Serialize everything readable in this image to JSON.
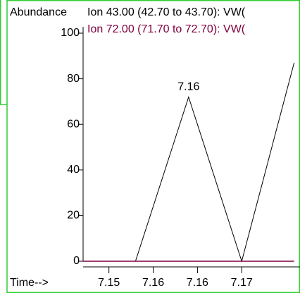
{
  "chart_data": {
    "type": "line",
    "ylabel": "Abundance",
    "xlabel": "Time-->",
    "xlim": [
      7.1485,
      7.1779
    ],
    "ylim": [
      0,
      100
    ],
    "xticks": [
      {
        "value": 7.152,
        "label": "7.15"
      },
      {
        "value": 7.158,
        "label": "7.16"
      },
      {
        "value": 7.164,
        "label": "7.16"
      },
      {
        "value": 7.17,
        "label": "7.17"
      }
    ],
    "yticks": [
      0,
      20,
      40,
      60,
      80,
      100
    ],
    "x": [
      7.1485,
      7.1556,
      7.1628,
      7.17,
      7.1771
    ],
    "series": [
      {
        "name": "Ion  43.00 (42.70 to 43.70): VW(",
        "color": "#000000",
        "values": [
          0,
          0,
          72,
          0,
          87
        ]
      },
      {
        "name": "Ion  72.00 (71.70 to 72.70): VW(",
        "color": "#800040",
        "values": [
          0,
          0,
          0,
          0,
          0
        ]
      }
    ],
    "annotations": [
      {
        "text": "7.16",
        "x": 7.1628,
        "y": 72
      }
    ]
  }
}
